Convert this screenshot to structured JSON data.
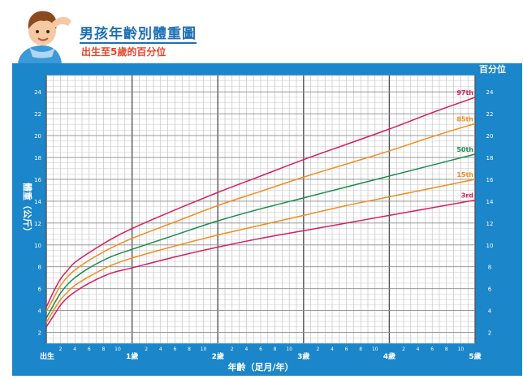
{
  "header": {
    "title": "男孩年齡別體重圖",
    "subtitle": "出生至5歲的百分位"
  },
  "chart_data": {
    "type": "line",
    "title": "男孩年齡別體重圖",
    "subtitle": "出生至5歲的百分位",
    "xlabel": "年齡（足月/年）",
    "ylabel": "體重（公斤）",
    "right_axis_title": "百分位",
    "xlim": [
      0,
      60
    ],
    "ylim": [
      1,
      25.5
    ],
    "x_unit": "months",
    "y_ticks": [
      2,
      4,
      6,
      8,
      10,
      12,
      14,
      16,
      18,
      20,
      22,
      24
    ],
    "year_labels": [
      {
        "month": 0,
        "label": "出生"
      },
      {
        "month": 12,
        "label": "1歲"
      },
      {
        "month": 24,
        "label": "2歲"
      },
      {
        "month": 36,
        "label": "3歲"
      },
      {
        "month": 48,
        "label": "4歲"
      },
      {
        "month": 60,
        "label": "5歲"
      }
    ],
    "month_ticks": [
      "2",
      "4",
      "6",
      "8",
      "10"
    ],
    "grid": true,
    "legend_position": "right, at line ends",
    "series": [
      {
        "name": "97th",
        "color": "#d81e5b",
        "x": [
          0,
          1,
          2,
          3,
          4,
          6,
          9,
          12,
          18,
          24,
          30,
          36,
          42,
          48,
          54,
          60
        ],
        "values": [
          4.3,
          5.7,
          6.9,
          7.7,
          8.4,
          9.3,
          10.5,
          11.5,
          13.2,
          14.8,
          16.3,
          17.8,
          19.2,
          20.6,
          22.1,
          23.5
        ]
      },
      {
        "name": "85th",
        "color": "#f28c1c",
        "x": [
          0,
          1,
          2,
          3,
          4,
          6,
          9,
          12,
          18,
          24,
          30,
          36,
          42,
          48,
          54,
          60
        ],
        "values": [
          3.9,
          5.1,
          6.3,
          7.1,
          7.7,
          8.6,
          9.7,
          10.6,
          12.1,
          13.6,
          14.9,
          16.2,
          17.4,
          18.6,
          19.9,
          21.1
        ]
      },
      {
        "name": "50th",
        "color": "#1a8c4a",
        "x": [
          0,
          1,
          2,
          3,
          4,
          6,
          9,
          12,
          18,
          24,
          30,
          36,
          42,
          48,
          54,
          60
        ],
        "values": [
          3.3,
          4.5,
          5.6,
          6.4,
          7.0,
          7.9,
          8.9,
          9.6,
          10.9,
          12.2,
          13.3,
          14.3,
          15.3,
          16.3,
          17.3,
          18.3
        ]
      },
      {
        "name": "15th",
        "color": "#f28c1c",
        "x": [
          0,
          1,
          2,
          3,
          4,
          6,
          9,
          12,
          18,
          24,
          30,
          36,
          42,
          48,
          54,
          60
        ],
        "values": [
          2.9,
          4.0,
          5.0,
          5.7,
          6.3,
          7.1,
          8.1,
          8.8,
          9.9,
          10.9,
          11.8,
          12.7,
          13.6,
          14.4,
          15.2,
          16.0
        ]
      },
      {
        "name": "3rd",
        "color": "#d81e5b",
        "x": [
          0,
          1,
          2,
          3,
          4,
          6,
          9,
          12,
          18,
          24,
          30,
          36,
          42,
          48,
          54,
          60
        ],
        "values": [
          2.5,
          3.5,
          4.5,
          5.2,
          5.7,
          6.5,
          7.4,
          7.9,
          8.9,
          9.8,
          10.6,
          11.3,
          12.0,
          12.7,
          13.4,
          14.1
        ]
      }
    ]
  }
}
